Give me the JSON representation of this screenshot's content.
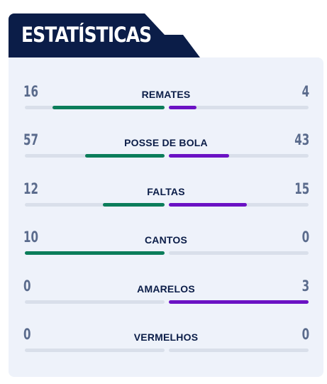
{
  "title": "ESTATÍSTICAS",
  "colors": {
    "home": "#0b7d5a",
    "away": "#6b12c4",
    "header": "#0b1d48"
  },
  "stats": [
    {
      "label": "REMATES",
      "home": "16",
      "away": "4",
      "home_share": 0.8,
      "away_share": 0.2
    },
    {
      "label": "POSSE DE BOLA",
      "home": "57",
      "away": "43",
      "home_share": 0.57,
      "away_share": 0.43
    },
    {
      "label": "FALTAS",
      "home": "12",
      "away": "15",
      "home_share": 0.44,
      "away_share": 0.56
    },
    {
      "label": "CANTOS",
      "home": "10",
      "away": "0",
      "home_share": 1.0,
      "away_share": 0.0
    },
    {
      "label": "AMARELOS",
      "home": "0",
      "away": "3",
      "home_share": 0.0,
      "away_share": 1.0
    },
    {
      "label": "VERMELHOS",
      "home": "0",
      "away": "0",
      "home_share": 0.0,
      "away_share": 0.0
    }
  ]
}
